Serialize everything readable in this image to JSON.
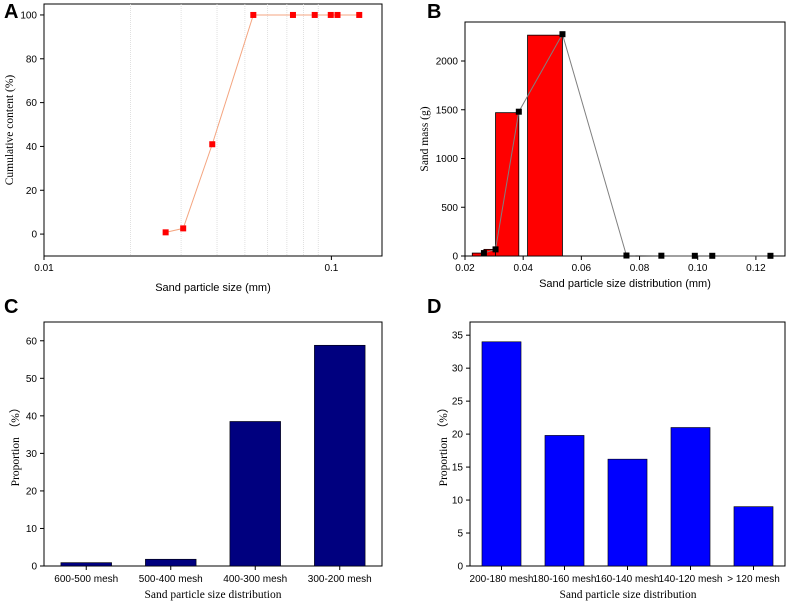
{
  "chart_data": [
    {
      "panel": "A",
      "type": "scatter",
      "xscale": "log",
      "xlabel": "Sand particle size (mm)",
      "ylabel": "Cumulative content (%)",
      "xlim": [
        0.01,
        0.15
      ],
      "ylim": [
        -10,
        105
      ],
      "xticks": [
        0.01,
        0.1
      ],
      "xtick_labels": [
        "0.01",
        "0.1"
      ],
      "yticks": [
        0,
        20,
        40,
        60,
        80,
        100
      ],
      "ytick_labels": [
        "0",
        "20",
        "40",
        "60",
        "80",
        "100"
      ],
      "vgrid": [
        0.02,
        0.03,
        0.04,
        0.05,
        0.06,
        0.07,
        0.08,
        0.09
      ],
      "series": [
        {
          "name": "cumulative",
          "color": "#ff0000",
          "line_color": "#f4a580",
          "x": [
            0.0265,
            0.0305,
            0.0385,
            0.0535,
            0.0735,
            0.0875,
            0.0995,
            0.105,
            0.125
          ],
          "y": [
            0.8,
            2.6,
            41,
            100,
            100,
            100,
            100,
            100,
            100
          ]
        }
      ]
    },
    {
      "panel": "B",
      "type": "bar",
      "xlabel": "Sand particle size distribution (mm)",
      "ylabel": "Sand mass (g)",
      "xlim": [
        0.02,
        0.13
      ],
      "ylim": [
        0,
        2400
      ],
      "xticks": [
        0.02,
        0.04,
        0.06,
        0.08,
        0.1,
        0.12
      ],
      "xtick_labels": [
        "0.02",
        "0.04",
        "0.06",
        "0.08",
        "0.10",
        "0.12"
      ],
      "yticks": [
        0,
        500,
        1000,
        1500,
        2000
      ],
      "ytick_labels": [
        "0",
        "500",
        "1000",
        "1500",
        "2000"
      ],
      "bars": [
        {
          "x0": 0.0225,
          "x1": 0.0265,
          "value": 30
        },
        {
          "x0": 0.0265,
          "x1": 0.0305,
          "value": 68
        },
        {
          "x0": 0.0305,
          "x1": 0.0385,
          "value": 1470
        },
        {
          "x0": 0.0415,
          "x1": 0.0535,
          "value": 2265
        }
      ],
      "bar_color": "#ff0000",
      "line": {
        "x": [
          0.0265,
          0.0305,
          0.0385,
          0.0535,
          0.0755,
          0.0875,
          0.099,
          0.105,
          0.125
        ],
        "y": [
          30,
          68,
          1480,
          2275,
          5,
          3,
          2,
          2,
          2
        ],
        "color": "#808080"
      }
    },
    {
      "panel": "C",
      "type": "bar",
      "xlabel": "Sand particle size distribution",
      "ylabel": "Proportion （%）",
      "categories": [
        "600-500 mesh",
        "500-400 mesh",
        "400-300 mesh",
        "300-200 mesh"
      ],
      "values": [
        0.9,
        1.8,
        38.5,
        58.8
      ],
      "ylim": [
        0,
        65
      ],
      "yticks": [
        0,
        10,
        20,
        30,
        40,
        50,
        60
      ],
      "ytick_labels": [
        "0",
        "10",
        "20",
        "30",
        "40",
        "50",
        "60"
      ],
      "bar_color": "#00007f"
    },
    {
      "panel": "D",
      "type": "bar",
      "xlabel": "Sand particle size distribution",
      "ylabel": "Proportion （%）",
      "categories": [
        "200-180 mesh",
        "180-160 mesh",
        "160-140 mesh",
        "140-120 mesh",
        "> 120 mesh"
      ],
      "values": [
        34.0,
        19.8,
        16.2,
        21.0,
        9.0
      ],
      "ylim": [
        0,
        37
      ],
      "yticks": [
        0,
        5,
        10,
        15,
        20,
        25,
        30,
        35
      ],
      "ytick_labels": [
        "0",
        "5",
        "10",
        "15",
        "20",
        "25",
        "30",
        "35"
      ],
      "bar_color": "#0000ff"
    }
  ]
}
